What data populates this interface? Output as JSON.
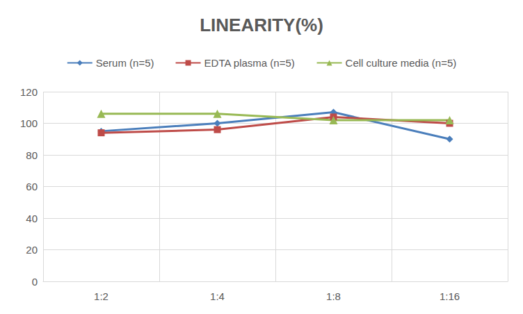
{
  "chart_data": {
    "type": "line",
    "title": "LINEARITY(%)",
    "categories": [
      "1:2",
      "1:4",
      "1:8",
      "1:16"
    ],
    "series": [
      {
        "name": "Serum (n=5)",
        "color": "#4a7ebb",
        "marker": "diamond",
        "values": [
          95,
          100,
          107,
          90
        ]
      },
      {
        "name": "EDTA plasma (n=5)",
        "color": "#be4b48",
        "marker": "square",
        "values": [
          94,
          96,
          104,
          100
        ]
      },
      {
        "name": "Cell culture media (n=5)",
        "color": "#98b954",
        "marker": "triangle",
        "values": [
          106,
          106,
          102,
          102
        ]
      }
    ],
    "ylim": [
      0,
      120
    ],
    "yticks": [
      0,
      20,
      40,
      60,
      80,
      100,
      120
    ],
    "grid": true,
    "legend": "top"
  }
}
